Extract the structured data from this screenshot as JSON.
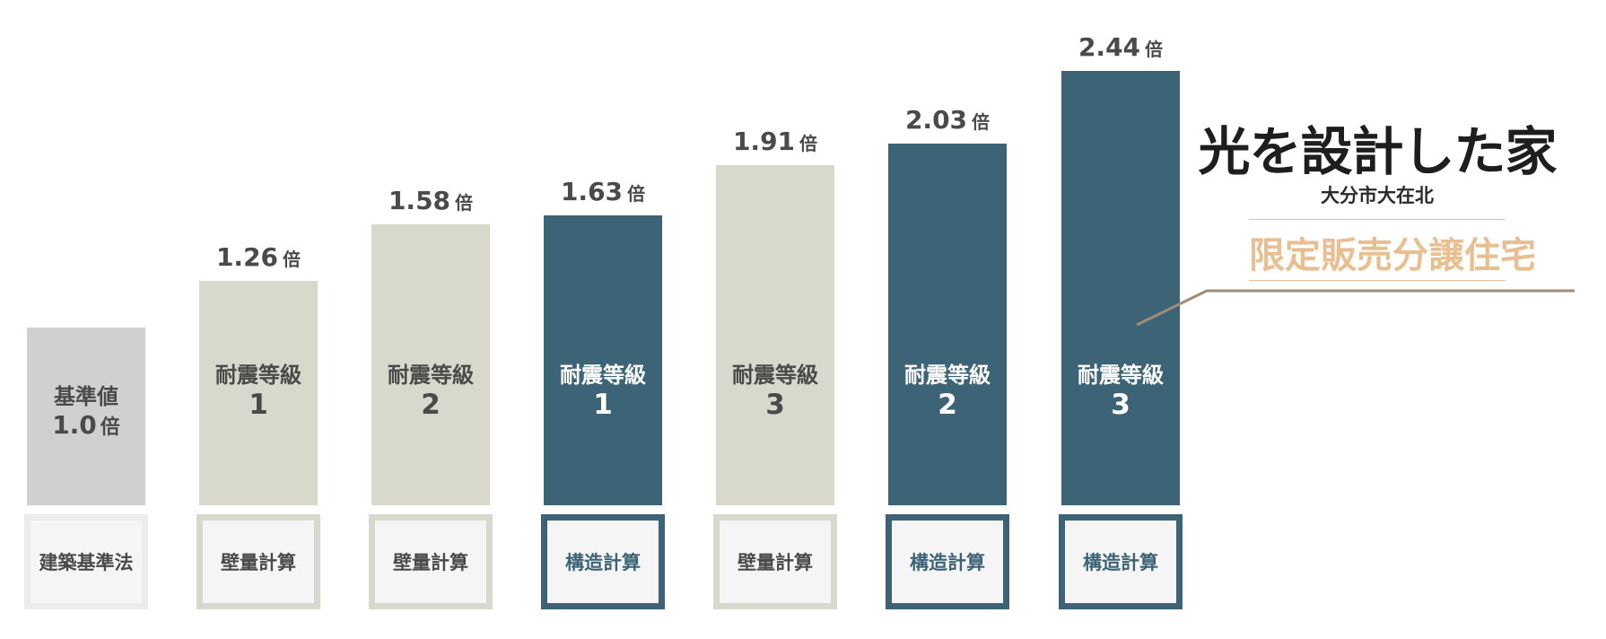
{
  "colors": {
    "base_bar": "#d0d0d0",
    "wall_bar": "#d8d8cc",
    "struct_bar": "#3d6476",
    "dark_text": "#4a4a4a",
    "light_text": "#ffffff",
    "brand_gold": "#e8bf91",
    "callout_line": "#a08a78"
  },
  "chart_data": {
    "type": "bar",
    "categories": [
      "基準値",
      "耐震等級 1",
      "耐震等級 2",
      "耐震等級 1",
      "耐震等級 3",
      "耐震等級 2",
      "耐震等級 3"
    ],
    "values": [
      1.0,
      1.26,
      1.58,
      1.63,
      1.91,
      2.03,
      2.44
    ],
    "value_unit": "倍",
    "methods": [
      "建築基準法",
      "壁量計算",
      "壁量計算",
      "構造計算",
      "壁量計算",
      "構造計算",
      "構造計算"
    ],
    "ylim": [
      0,
      2.44
    ],
    "grid": false,
    "bars": [
      {
        "style": "base",
        "line1": "基準値",
        "line2": "1.0",
        "unit": "倍",
        "show_value_above": false,
        "method": "建築基準法"
      },
      {
        "style": "wall",
        "line1": "耐震等級",
        "line2": "1",
        "unit": "",
        "show_value_above": true,
        "value_text": "1.26",
        "method": "壁量計算"
      },
      {
        "style": "wall",
        "line1": "耐震等級",
        "line2": "2",
        "unit": "",
        "show_value_above": true,
        "value_text": "1.58",
        "method": "壁量計算"
      },
      {
        "style": "struct",
        "line1": "耐震等級",
        "line2": "1",
        "unit": "",
        "show_value_above": true,
        "value_text": "1.63",
        "method": "構造計算"
      },
      {
        "style": "wall",
        "line1": "耐震等級",
        "line2": "3",
        "unit": "",
        "show_value_above": true,
        "value_text": "1.91",
        "method": "壁量計算"
      },
      {
        "style": "struct",
        "line1": "耐震等級",
        "line2": "2",
        "unit": "",
        "show_value_above": true,
        "value_text": "2.03",
        "method": "構造計算"
      },
      {
        "style": "struct",
        "line1": "耐震等級",
        "line2": "3",
        "unit": "",
        "show_value_above": true,
        "value_text": "2.44",
        "method": "構造計算"
      }
    ]
  },
  "brand": {
    "title": "光を設計した家",
    "subtitle": "大分市大在北",
    "tagline": "限定販売分譲住宅"
  }
}
